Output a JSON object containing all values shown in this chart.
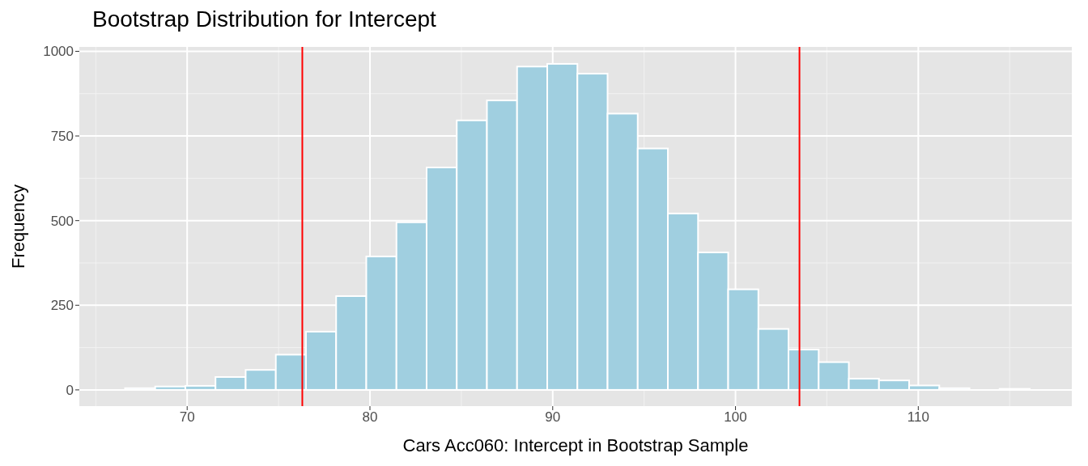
{
  "chart_data": {
    "type": "histogram",
    "title": "Bootstrap Distribution for Intercept",
    "xlabel": "Cars Acc060: Intercept in Bootstrap Sample",
    "ylabel": "Frequency",
    "bins": [
      66.6,
      68.25,
      69.9,
      71.55,
      73.2,
      74.85,
      76.5,
      78.15,
      79.8,
      81.45,
      83.1,
      84.75,
      86.4,
      88.05,
      89.7,
      91.35,
      93.0,
      94.65,
      96.3,
      97.95,
      99.6,
      101.25,
      102.9,
      104.55,
      106.2,
      107.85,
      109.5,
      111.15,
      112.8,
      114.45,
      116.1
    ],
    "values": [
      5,
      10,
      12,
      38,
      59,
      104,
      172,
      277,
      394,
      495,
      657,
      796,
      855,
      955,
      963,
      934,
      816,
      713,
      521,
      406,
      297,
      180,
      119,
      82,
      33,
      28,
      13,
      5,
      null,
      3
    ],
    "color": "#a0cfe0",
    "xlim": [
      64.1,
      118.4
    ],
    "xticks": [
      70,
      80,
      90,
      100,
      110
    ],
    "ylim": [
      -48,
      1013
    ],
    "yticks": [
      0,
      250,
      500,
      750,
      1000
    ],
    "grid": true,
    "ref_lines": [
      {
        "axis": "x",
        "value": 76.3,
        "color": "#ff0000"
      },
      {
        "axis": "x",
        "value": 103.5,
        "color": "#ff0000"
      }
    ]
  }
}
